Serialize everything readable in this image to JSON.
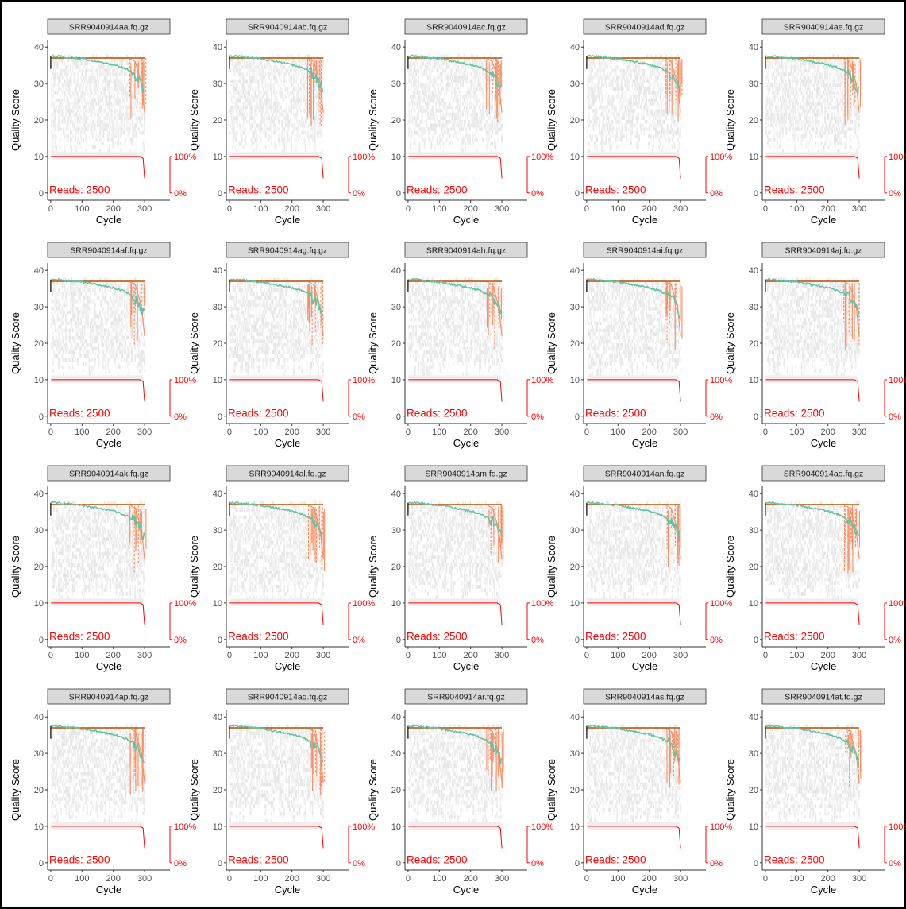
{
  "chart_data": {
    "type": "line",
    "layout": "facet-grid 5 columns x 4 rows",
    "x_label": "Cycle",
    "y_label": "Quality Score",
    "x_ticks": [
      0,
      100,
      200,
      300
    ],
    "y_ticks": [
      0,
      10,
      20,
      30,
      40
    ],
    "x_range": [
      -10,
      320
    ],
    "y_range": [
      -2,
      42
    ],
    "secondary_axis_ticks": [
      "100%",
      "0%"
    ],
    "reads_prefix": "Reads:",
    "colors": {
      "mean_line": "#66c2a5",
      "quartile_lines": "#fc8d62",
      "median_line": "#b35806",
      "reads_line": "#ff0000",
      "heatmap": "#e6e6e6",
      "strip_bg": "#d9d9d9"
    },
    "panels": [
      {
        "title": "SRR9040914aa.fq.gz",
        "reads": "2500"
      },
      {
        "title": "SRR9040914ab.fq.gz",
        "reads": "2500"
      },
      {
        "title": "SRR9040914ac.fq.gz",
        "reads": "2500"
      },
      {
        "title": "SRR9040914ad.fq.gz",
        "reads": "2500"
      },
      {
        "title": "SRR9040914ae.fq.gz",
        "reads": "2500"
      },
      {
        "title": "SRR9040914af.fq.gz",
        "reads": "2500"
      },
      {
        "title": "SRR9040914ag.fq.gz",
        "reads": "2500"
      },
      {
        "title": "SRR9040914ah.fq.gz",
        "reads": "2500"
      },
      {
        "title": "SRR9040914ai.fq.gz",
        "reads": "2500"
      },
      {
        "title": "SRR9040914aj.fq.gz",
        "reads": "2500"
      },
      {
        "title": "SRR9040914ak.fq.gz",
        "reads": "2500"
      },
      {
        "title": "SRR9040914al.fq.gz",
        "reads": "2500"
      },
      {
        "title": "SRR9040914am.fq.gz",
        "reads": "2500"
      },
      {
        "title": "SRR9040914an.fq.gz",
        "reads": "2500"
      },
      {
        "title": "SRR9040914ao.fq.gz",
        "reads": "2500"
      },
      {
        "title": "SRR9040914ap.fq.gz",
        "reads": "2500"
      },
      {
        "title": "SRR9040914aq.fq.gz",
        "reads": "2500"
      },
      {
        "title": "SRR9040914ar.fq.gz",
        "reads": "2500"
      },
      {
        "title": "SRR9040914as.fq.gz",
        "reads": "2500"
      },
      {
        "title": "SRR9040914at.fq.gz",
        "reads": "2500"
      }
    ],
    "mean_quality": {
      "x": [
        1,
        20,
        50,
        100,
        150,
        200,
        230,
        250,
        260,
        270,
        280,
        290,
        300
      ],
      "y": [
        37.5,
        37.5,
        37.2,
        36.8,
        36.0,
        35.2,
        34.4,
        33.6,
        33.0,
        32.3,
        31.2,
        29.5,
        27.5
      ]
    },
    "median_quality": {
      "x": [
        1,
        300
      ],
      "y": [
        37,
        37
      ]
    },
    "quartile_quality": {
      "x": [
        1,
        250,
        270,
        290,
        300
      ],
      "y": [
        37,
        37,
        36,
        30,
        22
      ]
    },
    "read_fraction": {
      "x": [
        1,
        285,
        295,
        300
      ],
      "y": [
        10,
        10,
        9.5,
        4
      ]
    }
  }
}
